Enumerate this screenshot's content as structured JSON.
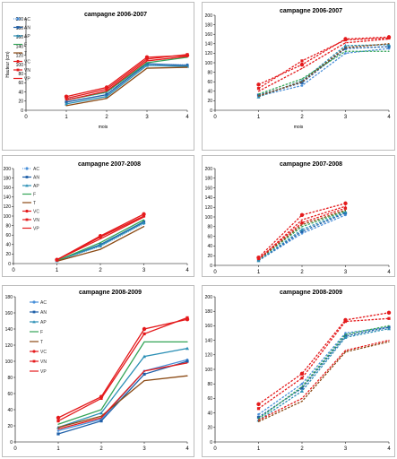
{
  "chart_data": [
    {
      "type": "line",
      "title": "campagne 2006-2007",
      "xlabel": "mois",
      "ylabel": "Hauteur (cm)",
      "xlim": [
        0,
        4
      ],
      "ylim": [
        0,
        200
      ],
      "xticks": [
        "0",
        "1",
        "2",
        "3",
        "4"
      ],
      "yticks": [
        "0",
        "20",
        "40",
        "60",
        "80",
        "100",
        "120",
        "140",
        "160",
        "180",
        "200"
      ],
      "legend": "left",
      "x": [
        1,
        2,
        3,
        4
      ],
      "series": [
        {
          "name": "AC",
          "values": [
            24,
            38,
            100,
            100
          ],
          "color": "#4a90d9",
          "style": "dotted",
          "marker": "dot"
        },
        {
          "name": "AN",
          "values": [
            18,
            34,
            102,
            98
          ],
          "color": "#1f5fa8",
          "style": "solid",
          "marker": "square"
        },
        {
          "name": "AP",
          "values": [
            14,
            30,
            98,
            96
          ],
          "color": "#2b8fb5",
          "style": "solid",
          "marker": "triangle"
        },
        {
          "name": "F",
          "values": [
            22,
            40,
            104,
            116
          ],
          "color": "#33a457",
          "style": "solid",
          "marker": "none"
        },
        {
          "name": "T",
          "values": [
            10,
            26,
            92,
            94
          ],
          "color": "#8b4a14",
          "style": "solid",
          "marker": "none"
        },
        {
          "name": "VC",
          "values": [
            30,
            50,
            116,
            120
          ],
          "color": "#e41a1c",
          "style": "solid",
          "marker": "circle"
        },
        {
          "name": "VN",
          "values": [
            26,
            46,
            112,
            122
          ],
          "color": "#e41a1c",
          "style": "solid",
          "marker": "square"
        },
        {
          "name": "VP",
          "values": [
            22,
            42,
            108,
            118
          ],
          "color": "#e41a1c",
          "style": "solid",
          "marker": "none"
        }
      ]
    },
    {
      "type": "line",
      "title": "campagne 2006-2007",
      "xlabel": "mois",
      "ylabel": "",
      "xlim": [
        0,
        4
      ],
      "ylim": [
        0,
        200
      ],
      "xticks": [
        "0",
        "1",
        "2",
        "3",
        "4"
      ],
      "yticks": [
        "0",
        "20",
        "40",
        "60",
        "80",
        "100",
        "120",
        "140",
        "160",
        "180",
        "200"
      ],
      "legend": "none",
      "x": [
        1,
        2,
        3,
        4
      ],
      "series": [
        {
          "name": "",
          "values": [
            30,
            52,
            120,
            130
          ],
          "color": "#4a90d9",
          "style": "dashed",
          "marker": "dot"
        },
        {
          "name": "",
          "values": [
            32,
            58,
            130,
            134
          ],
          "color": "#1f5fa8",
          "style": "dashed",
          "marker": "square"
        },
        {
          "name": "",
          "values": [
            28,
            62,
            136,
            138
          ],
          "color": "#2b8fb5",
          "style": "dashed",
          "marker": "triangle"
        },
        {
          "name": "",
          "values": [
            34,
            66,
            124,
            124
          ],
          "color": "#33a457",
          "style": "dashed",
          "marker": "none"
        },
        {
          "name": "",
          "values": [
            30,
            60,
            132,
            140
          ],
          "color": "#8b4a14",
          "style": "dashed",
          "marker": "none"
        },
        {
          "name": "",
          "values": [
            54,
            96,
            150,
            154
          ],
          "color": "#e41a1c",
          "style": "dashed",
          "marker": "circle"
        },
        {
          "name": "",
          "values": [
            46,
            104,
            148,
            152
          ],
          "color": "#e41a1c",
          "style": "dashed",
          "marker": "square"
        },
        {
          "name": "",
          "values": [
            40,
            88,
            142,
            150
          ],
          "color": "#e41a1c",
          "style": "dashed",
          "marker": "none"
        }
      ]
    },
    {
      "type": "line",
      "title": "campagne 2007-2008",
      "xlabel": "",
      "ylabel": "",
      "xlim": [
        0,
        4
      ],
      "ylim": [
        0,
        200
      ],
      "xticks": [
        "0",
        "1",
        "2",
        "3",
        "4"
      ],
      "yticks": [
        "0",
        "20",
        "40",
        "60",
        "80",
        "100",
        "120",
        "140",
        "160",
        "180",
        "200"
      ],
      "legend": "left",
      "x": [
        1,
        2,
        3
      ],
      "series": [
        {
          "name": "AC",
          "values": [
            6,
            36,
            84
          ],
          "color": "#4a90d9",
          "style": "dotted",
          "marker": "dot"
        },
        {
          "name": "AN",
          "values": [
            6,
            40,
            88
          ],
          "color": "#1f5fa8",
          "style": "solid",
          "marker": "square"
        },
        {
          "name": "AP",
          "values": [
            6,
            38,
            86
          ],
          "color": "#2b8fb5",
          "style": "solid",
          "marker": "triangle"
        },
        {
          "name": "F",
          "values": [
            6,
            44,
            92
          ],
          "color": "#33a457",
          "style": "solid",
          "marker": "none"
        },
        {
          "name": "T",
          "values": [
            5,
            30,
            78
          ],
          "color": "#8b4a14",
          "style": "solid",
          "marker": "none"
        },
        {
          "name": "VC",
          "values": [
            8,
            58,
            104
          ],
          "color": "#e41a1c",
          "style": "solid",
          "marker": "circle"
        },
        {
          "name": "VN",
          "values": [
            8,
            56,
            100
          ],
          "color": "#e41a1c",
          "style": "solid",
          "marker": "square"
        },
        {
          "name": "VP",
          "values": [
            8,
            52,
            98
          ],
          "color": "#e41a1c",
          "style": "solid",
          "marker": "none"
        }
      ]
    },
    {
      "type": "line",
      "title": "campagne 2007-2008",
      "xlabel": "",
      "ylabel": "",
      "xlim": [
        0,
        4
      ],
      "ylim": [
        0,
        200
      ],
      "xticks": [
        "0",
        "1",
        "2",
        "3",
        "4"
      ],
      "yticks": [
        "0",
        "20",
        "40",
        "60",
        "80",
        "100",
        "120",
        "140",
        "160",
        "180",
        "200"
      ],
      "legend": "none",
      "x": [
        1,
        2,
        3
      ],
      "series": [
        {
          "name": "",
          "values": [
            10,
            66,
            104
          ],
          "color": "#4a90d9",
          "style": "dashed",
          "marker": "dot"
        },
        {
          "name": "",
          "values": [
            10,
            70,
            108
          ],
          "color": "#1f5fa8",
          "style": "dashed",
          "marker": "square"
        },
        {
          "name": "",
          "values": [
            10,
            74,
            110
          ],
          "color": "#2b8fb5",
          "style": "dashed",
          "marker": "triangle"
        },
        {
          "name": "",
          "values": [
            12,
            80,
            112
          ],
          "color": "#33a457",
          "style": "dashed",
          "marker": "none"
        },
        {
          "name": "",
          "values": [
            12,
            84,
            114
          ],
          "color": "#8b4a14",
          "style": "dashed",
          "marker": "none"
        },
        {
          "name": "",
          "values": [
            16,
            104,
            128
          ],
          "color": "#e41a1c",
          "style": "dashed",
          "marker": "circle"
        },
        {
          "name": "",
          "values": [
            14,
            88,
            118
          ],
          "color": "#e41a1c",
          "style": "dashed",
          "marker": "square"
        },
        {
          "name": "",
          "values": [
            12,
            94,
            122
          ],
          "color": "#e41a1c",
          "style": "dashed",
          "marker": "none"
        }
      ]
    },
    {
      "type": "line",
      "title": "campagne 2008-2009",
      "xlabel": "",
      "ylabel": "",
      "xlim": [
        0,
        4
      ],
      "ylim": [
        0,
        180
      ],
      "xticks": [
        "0",
        "1",
        "2",
        "3",
        "4"
      ],
      "yticks": [
        "0",
        "20",
        "40",
        "60",
        "80",
        "100",
        "120",
        "140",
        "160",
        "180"
      ],
      "legend": "left",
      "x": [
        1,
        2,
        3,
        4
      ],
      "series": [
        {
          "name": "AC",
          "values": [
            14,
            28,
            88,
            102
          ],
          "color": "#4a90d9",
          "style": "solid",
          "marker": "dot"
        },
        {
          "name": "AN",
          "values": [
            10,
            26,
            84,
            100
          ],
          "color": "#1f5fa8",
          "style": "solid",
          "marker": "square"
        },
        {
          "name": "AP",
          "values": [
            18,
            36,
            106,
            116
          ],
          "color": "#2b8fb5",
          "style": "solid",
          "marker": "triangle"
        },
        {
          "name": "F",
          "values": [
            22,
            40,
            124,
            124
          ],
          "color": "#33a457",
          "style": "solid",
          "marker": "none"
        },
        {
          "name": "T",
          "values": [
            18,
            32,
            76,
            82
          ],
          "color": "#8b4a14",
          "style": "solid",
          "marker": "none"
        },
        {
          "name": "VC",
          "values": [
            30,
            56,
            140,
            152
          ],
          "color": "#e41a1c",
          "style": "solid",
          "marker": "circle"
        },
        {
          "name": "VN",
          "values": [
            26,
            54,
            134,
            154
          ],
          "color": "#e41a1c",
          "style": "solid",
          "marker": "square"
        },
        {
          "name": "VP",
          "values": [
            16,
            30,
            88,
            98
          ],
          "color": "#e41a1c",
          "style": "solid",
          "marker": "none"
        }
      ]
    },
    {
      "type": "line",
      "title": "campagne 2008-2009",
      "xlabel": "",
      "ylabel": "",
      "xlim": [
        0,
        4
      ],
      "ylim": [
        0,
        200
      ],
      "xticks": [
        "0",
        "1",
        "2",
        "3",
        "4"
      ],
      "yticks": [
        "0",
        "20",
        "40",
        "60",
        "80",
        "100",
        "120",
        "140",
        "160",
        "180",
        "200"
      ],
      "legend": "none",
      "x": [
        1,
        2,
        3,
        4
      ],
      "series": [
        {
          "name": "",
          "values": [
            38,
            80,
            150,
            158
          ],
          "color": "#4a90d9",
          "style": "dashed",
          "marker": "dot"
        },
        {
          "name": "",
          "values": [
            34,
            74,
            146,
            158
          ],
          "color": "#1f5fa8",
          "style": "dashed",
          "marker": "square"
        },
        {
          "name": "",
          "values": [
            30,
            70,
            144,
            156
          ],
          "color": "#2b8fb5",
          "style": "dashed",
          "marker": "triangle"
        },
        {
          "name": "",
          "values": [
            32,
            76,
            148,
            160
          ],
          "color": "#33a457",
          "style": "dashed",
          "marker": "none"
        },
        {
          "name": "",
          "values": [
            28,
            56,
            124,
            138
          ],
          "color": "#8b4a14",
          "style": "dashed",
          "marker": "none"
        },
        {
          "name": "",
          "values": [
            52,
            94,
            168,
            178
          ],
          "color": "#e41a1c",
          "style": "dashed",
          "marker": "circle"
        },
        {
          "name": "",
          "values": [
            46,
            88,
            166,
            170
          ],
          "color": "#e41a1c",
          "style": "dashed",
          "marker": "square"
        },
        {
          "name": "",
          "values": [
            30,
            60,
            126,
            140
          ],
          "color": "#e41a1c",
          "style": "dashed",
          "marker": "none"
        }
      ]
    }
  ]
}
